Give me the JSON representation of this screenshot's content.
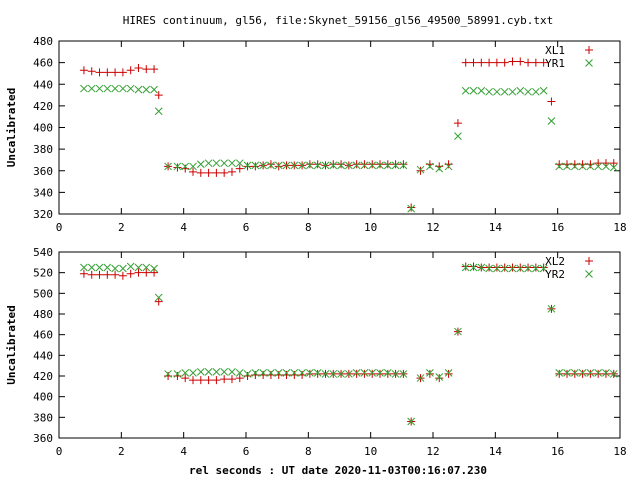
{
  "title": "HIRES continuum, gl56, file:Skynet_59156_gl56_49500_58991.cyb.txt",
  "xlabel": "rel seconds : UT date 2020-11-03T00:16:07.230",
  "colors": {
    "plus": "#cc0000",
    "cross": "#33a033",
    "axis": "#000000"
  },
  "chart_data": [
    {
      "type": "scatter",
      "ylabel": "Uncalibrated",
      "xlim": [
        0,
        18
      ],
      "ylim": [
        320,
        480
      ],
      "xticks": [
        0,
        2,
        4,
        6,
        8,
        10,
        12,
        14,
        16,
        18
      ],
      "yticks": [
        320,
        340,
        360,
        380,
        400,
        420,
        440,
        460,
        480
      ],
      "legend_position": "top-right",
      "series": [
        {
          "name": "XL1",
          "marker": "plus",
          "color": "#cc0000",
          "x": [
            0.8,
            1.05,
            1.3,
            1.55,
            1.8,
            2.05,
            2.3,
            2.55,
            2.8,
            3.05,
            3.2,
            3.5,
            3.8,
            4.05,
            4.3,
            4.55,
            4.8,
            5.05,
            5.3,
            5.55,
            5.8,
            6.05,
            6.3,
            6.55,
            6.8,
            7.05,
            7.3,
            7.55,
            7.8,
            8.05,
            8.3,
            8.55,
            8.8,
            9.05,
            9.3,
            9.55,
            9.8,
            10.05,
            10.3,
            10.55,
            10.8,
            11.05,
            11.3,
            11.6,
            11.9,
            12.2,
            12.5,
            12.8,
            13.05,
            13.3,
            13.55,
            13.8,
            14.05,
            14.3,
            14.55,
            14.8,
            15.05,
            15.3,
            15.55,
            15.8,
            16.05,
            16.3,
            16.55,
            16.8,
            17.05,
            17.3,
            17.55,
            17.8
          ],
          "y": [
            453,
            452,
            451,
            451,
            451,
            451,
            453,
            455,
            454,
            454,
            430,
            364,
            363,
            362,
            359,
            358,
            358,
            358,
            358,
            359,
            362,
            364,
            364,
            365,
            366,
            364,
            365,
            365,
            365,
            366,
            366,
            365,
            366,
            366,
            365,
            366,
            366,
            366,
            366,
            366,
            366,
            366,
            326,
            360,
            366,
            364,
            366,
            404,
            460,
            460,
            460,
            460,
            460,
            460,
            461,
            461,
            460,
            460,
            460,
            424,
            366,
            366,
            366,
            366,
            366,
            367,
            367,
            367
          ]
        },
        {
          "name": "YR1",
          "marker": "cross",
          "color": "#33a033",
          "x": [
            0.8,
            1.05,
            1.3,
            1.55,
            1.8,
            2.05,
            2.3,
            2.55,
            2.8,
            3.05,
            3.2,
            3.5,
            3.8,
            4.05,
            4.3,
            4.55,
            4.8,
            5.05,
            5.3,
            5.55,
            5.8,
            6.05,
            6.3,
            6.55,
            6.8,
            7.05,
            7.3,
            7.55,
            7.8,
            8.05,
            8.3,
            8.55,
            8.8,
            9.05,
            9.3,
            9.55,
            9.8,
            10.05,
            10.3,
            10.55,
            10.8,
            11.05,
            11.3,
            11.6,
            11.9,
            12.2,
            12.5,
            12.8,
            13.05,
            13.3,
            13.55,
            13.8,
            14.05,
            14.3,
            14.55,
            14.8,
            15.05,
            15.3,
            15.55,
            15.8,
            16.05,
            16.3,
            16.55,
            16.8,
            17.05,
            17.3,
            17.55,
            17.8
          ],
          "y": [
            436,
            436,
            436,
            436,
            436,
            436,
            436,
            435,
            435,
            435,
            415,
            364,
            364,
            364,
            364,
            366,
            367,
            367,
            367,
            367,
            367,
            365,
            365,
            365,
            365,
            365,
            365,
            365,
            365,
            365,
            365,
            365,
            365,
            365,
            365,
            365,
            365,
            365,
            365,
            365,
            365,
            365,
            325,
            361,
            364,
            362,
            364,
            392,
            434,
            434,
            434,
            433,
            433,
            433,
            433,
            434,
            433,
            433,
            434,
            406,
            364,
            364,
            364,
            364,
            364,
            364,
            364,
            363
          ]
        }
      ]
    },
    {
      "type": "scatter",
      "ylabel": "Uncalibrated",
      "xlim": [
        0,
        18
      ],
      "ylim": [
        360,
        540
      ],
      "xticks": [
        0,
        2,
        4,
        6,
        8,
        10,
        12,
        14,
        16,
        18
      ],
      "yticks": [
        360,
        380,
        400,
        420,
        440,
        460,
        480,
        500,
        520,
        540
      ],
      "legend_position": "top-right",
      "series": [
        {
          "name": "XL2",
          "marker": "plus",
          "color": "#cc0000",
          "x": [
            0.8,
            1.05,
            1.3,
            1.55,
            1.8,
            2.05,
            2.3,
            2.55,
            2.8,
            3.05,
            3.2,
            3.5,
            3.8,
            4.05,
            4.3,
            4.55,
            4.8,
            5.05,
            5.3,
            5.55,
            5.8,
            6.05,
            6.3,
            6.55,
            6.8,
            7.05,
            7.3,
            7.55,
            7.8,
            8.05,
            8.3,
            8.55,
            8.8,
            9.05,
            9.3,
            9.55,
            9.8,
            10.05,
            10.3,
            10.55,
            10.8,
            11.05,
            11.3,
            11.6,
            11.9,
            12.2,
            12.5,
            12.8,
            13.05,
            13.3,
            13.55,
            13.8,
            14.05,
            14.3,
            14.55,
            14.8,
            15.05,
            15.3,
            15.55,
            15.8,
            16.05,
            16.3,
            16.55,
            16.8,
            17.05,
            17.3,
            17.55,
            17.8
          ],
          "y": [
            519,
            518,
            518,
            518,
            518,
            517,
            519,
            520,
            520,
            520,
            492,
            420,
            420,
            418,
            416,
            416,
            416,
            416,
            417,
            417,
            418,
            420,
            421,
            421,
            421,
            421,
            421,
            421,
            421,
            422,
            422,
            422,
            422,
            422,
            422,
            422,
            422,
            422,
            422,
            422,
            422,
            422,
            376,
            418,
            422,
            418,
            422,
            463,
            526,
            526,
            525,
            525,
            525,
            525,
            525,
            525,
            525,
            525,
            525,
            485,
            422,
            422,
            422,
            422,
            422,
            422,
            422,
            422
          ]
        },
        {
          "name": "YR2",
          "marker": "cross",
          "color": "#33a033",
          "x": [
            0.8,
            1.05,
            1.3,
            1.55,
            1.8,
            2.05,
            2.3,
            2.55,
            2.8,
            3.05,
            3.2,
            3.5,
            3.8,
            4.05,
            4.3,
            4.55,
            4.8,
            5.05,
            5.3,
            5.55,
            5.8,
            6.05,
            6.3,
            6.55,
            6.8,
            7.05,
            7.3,
            7.55,
            7.8,
            8.05,
            8.3,
            8.55,
            8.8,
            9.05,
            9.3,
            9.55,
            9.8,
            10.05,
            10.3,
            10.55,
            10.8,
            11.05,
            11.3,
            11.6,
            11.9,
            12.2,
            12.5,
            12.8,
            13.05,
            13.3,
            13.55,
            13.8,
            14.05,
            14.3,
            14.55,
            14.8,
            15.05,
            15.3,
            15.55,
            15.8,
            16.05,
            16.3,
            16.55,
            16.8,
            17.05,
            17.3,
            17.55,
            17.8
          ],
          "y": [
            525,
            525,
            525,
            525,
            524,
            524,
            526,
            525,
            525,
            524,
            496,
            422,
            422,
            423,
            423,
            424,
            424,
            424,
            424,
            424,
            423,
            422,
            423,
            423,
            423,
            423,
            423,
            423,
            423,
            423,
            423,
            422,
            422,
            422,
            422,
            423,
            423,
            423,
            423,
            423,
            422,
            422,
            376,
            418,
            423,
            419,
            423,
            463,
            525,
            525,
            525,
            524,
            524,
            524,
            524,
            524,
            524,
            524,
            524,
            485,
            423,
            423,
            423,
            423,
            423,
            423,
            423,
            422
          ]
        }
      ]
    }
  ]
}
